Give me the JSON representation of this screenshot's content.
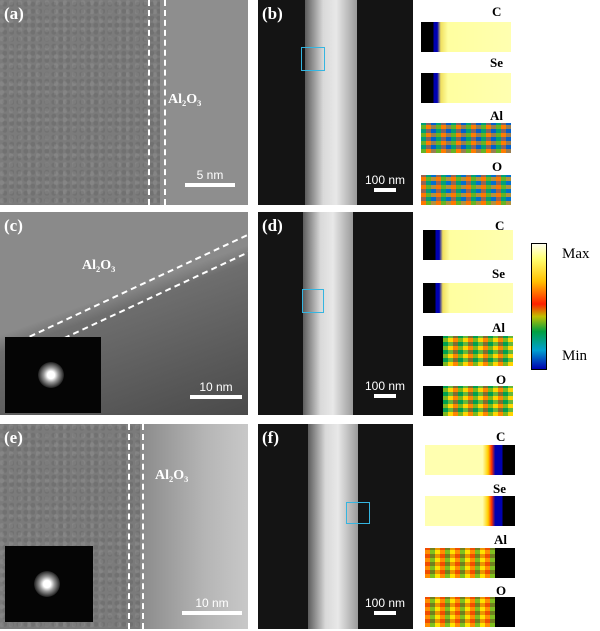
{
  "panels": {
    "a": {
      "label": "(a)",
      "material": "Al₂O₃",
      "scale": "5 nm"
    },
    "b": {
      "label": "(b)",
      "scale": "100 nm"
    },
    "c": {
      "label": "(c)",
      "material": "Al₂O₃",
      "scale": "10 nm"
    },
    "d": {
      "label": "(d)",
      "scale": "100 nm"
    },
    "e": {
      "label": "(e)",
      "material": "Al₂O₃",
      "scale": "10 nm"
    },
    "f": {
      "label": "(f)",
      "scale": "100 nm"
    }
  },
  "elements": [
    "C",
    "Se",
    "Al",
    "O"
  ],
  "colorbar": {
    "max_label": "Max",
    "min_label": "Min"
  },
  "colors": {
    "roi": "#35b5e0"
  }
}
